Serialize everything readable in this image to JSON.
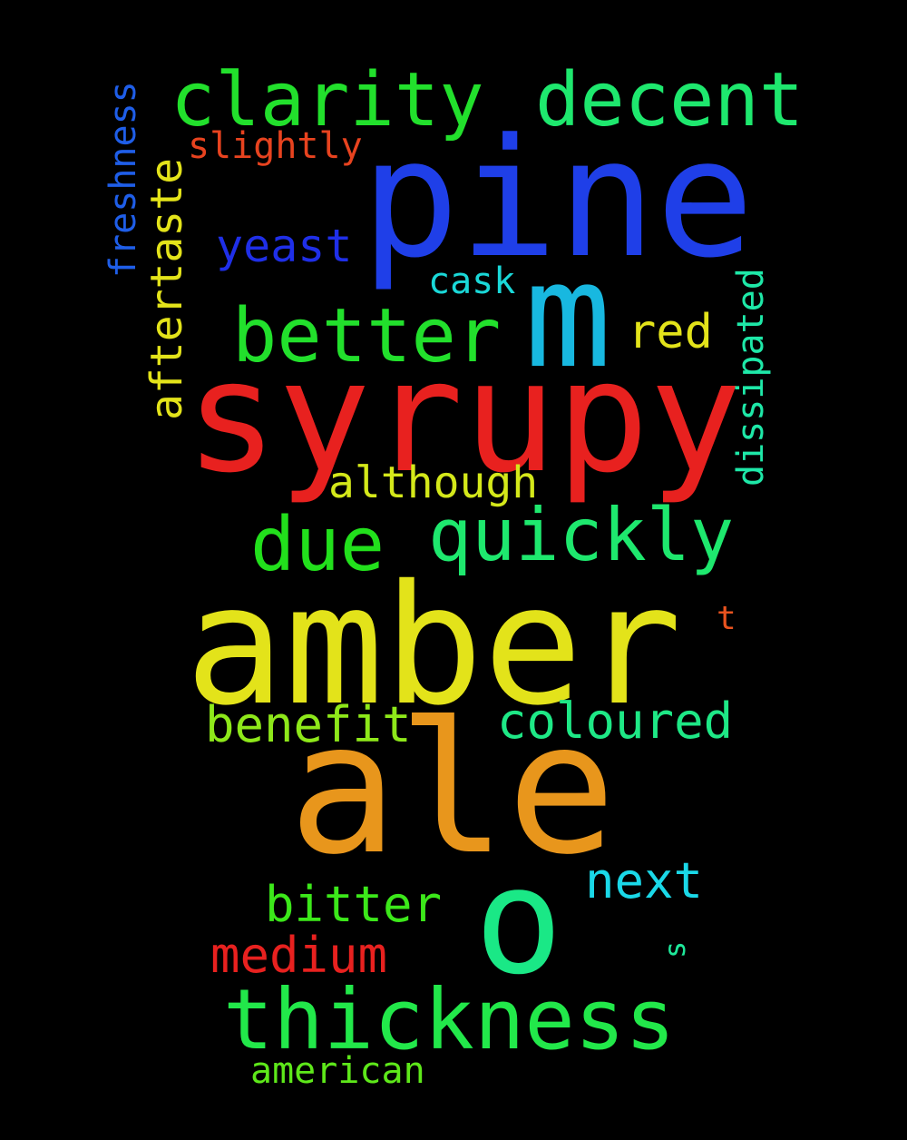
{
  "words": [
    {
      "id": "pine",
      "text": "pine",
      "color": "#1f3fe8"
    },
    {
      "id": "syrupy",
      "text": "syrupy",
      "color": "#e8211f"
    },
    {
      "id": "amber",
      "text": "amber",
      "color": "#e3e31a"
    },
    {
      "id": "ale",
      "text": "ale",
      "color": "#e8961c"
    },
    {
      "id": "m",
      "text": "m",
      "color": "#18b8e0"
    },
    {
      "id": "o",
      "text": "o",
      "color": "#1ae886"
    },
    {
      "id": "clarity",
      "text": "clarity",
      "color": "#22e02c"
    },
    {
      "id": "decent",
      "text": "decent",
      "color": "#1ee86e"
    },
    {
      "id": "better",
      "text": "better",
      "color": "#22e02c"
    },
    {
      "id": "quickly",
      "text": "quickly",
      "color": "#1ee86e"
    },
    {
      "id": "due",
      "text": "due",
      "color": "#22e01c"
    },
    {
      "id": "thickness",
      "text": "thickness",
      "color": "#22e84a"
    },
    {
      "id": "yeast",
      "text": "yeast",
      "color": "#1f2fe8"
    },
    {
      "id": "aftertaste",
      "text": "aftertaste",
      "color": "#e3e31a"
    },
    {
      "id": "benefit",
      "text": "benefit",
      "color": "#8ee81a"
    },
    {
      "id": "coloured",
      "text": "coloured",
      "color": "#1ee886"
    },
    {
      "id": "bitter",
      "text": "bitter",
      "color": "#3ce81a"
    },
    {
      "id": "next",
      "text": "next",
      "color": "#1ad8e8"
    },
    {
      "id": "medium",
      "text": "medium",
      "color": "#e8211f"
    },
    {
      "id": "although",
      "text": "although",
      "color": "#d4e81a"
    },
    {
      "id": "red",
      "text": "red",
      "color": "#e3e31a"
    },
    {
      "id": "slightly",
      "text": "slightly",
      "color": "#e8431f"
    },
    {
      "id": "cask",
      "text": "cask",
      "color": "#1ad8d8"
    },
    {
      "id": "freshness",
      "text": "freshness",
      "color": "#1f5ee8"
    },
    {
      "id": "dissipated",
      "text": "dissipated",
      "color": "#1ee8a8"
    },
    {
      "id": "american",
      "text": "american",
      "color": "#5ee81a"
    },
    {
      "id": "t",
      "text": "t",
      "color": "#e8531f"
    },
    {
      "id": "s",
      "text": "s",
      "color": "#1ee89a"
    }
  ]
}
